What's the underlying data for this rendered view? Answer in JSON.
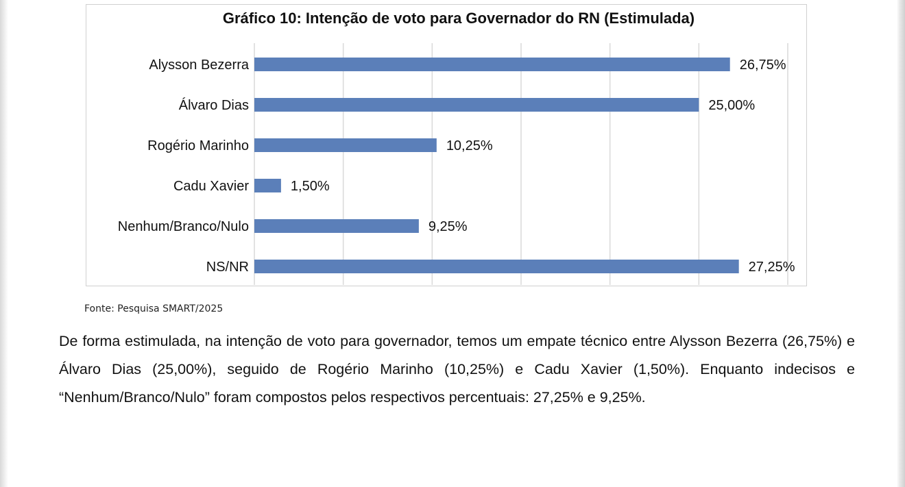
{
  "chart_data": {
    "type": "bar",
    "orientation": "horizontal",
    "title": "Gráfico 10: Intenção de voto para Governador do RN (Estimulada)",
    "categories": [
      "Alysson Bezerra",
      "Álvaro Dias",
      "Rogério Marinho",
      "Cadu Xavier",
      "Nenhum/Branco/Nulo",
      "NS/NR"
    ],
    "values": [
      26.75,
      25.0,
      10.25,
      1.5,
      9.25,
      27.25
    ],
    "value_labels": [
      "26,75%",
      "25,00%",
      "10,25%",
      "1,50%",
      "9,25%",
      "27,25%"
    ],
    "xlim": [
      0,
      30
    ],
    "grid": "vertical",
    "bar_color": "#5b7fb9",
    "grid_color": "#d9d9d9"
  },
  "source": "Fonte: Pesquisa SMART/2025",
  "paragraph": "De forma estimulada, na intenção de voto para governador, temos um empate técnico entre Alysson Bezerra (26,75%) e Álvaro Dias (25,00%), seguido de Rogério Marinho (10,25%) e Cadu Xavier (1,50%). Enquanto indecisos e “Nenhum/Branco/Nulo” foram compostos pelos respectivos percentuais: 27,25% e 9,25%."
}
